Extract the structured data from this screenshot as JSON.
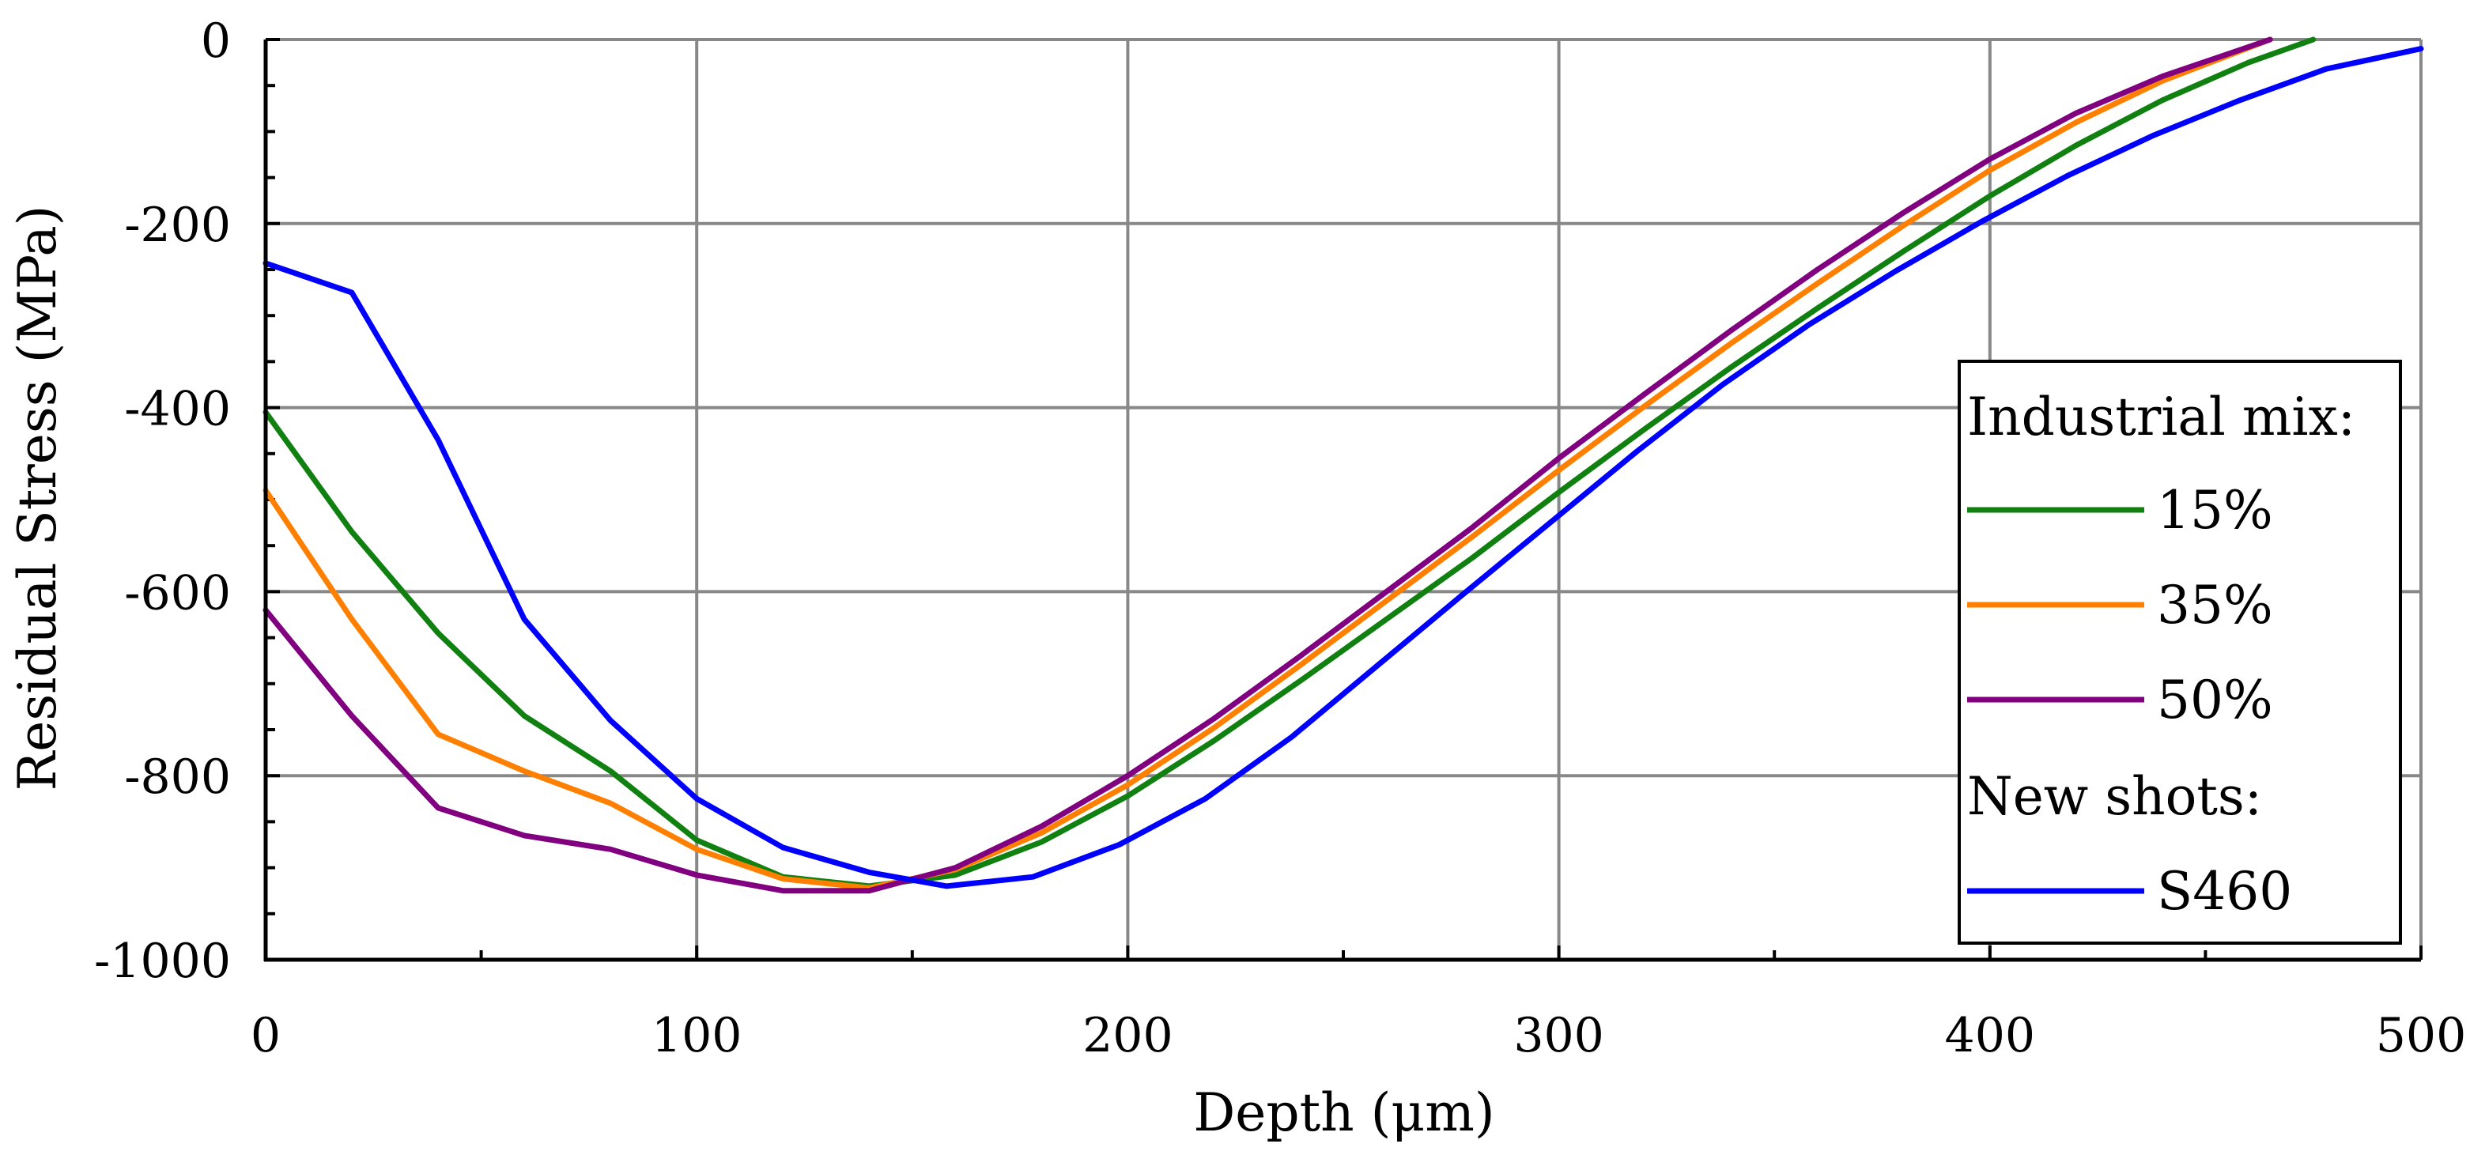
{
  "chart_data": {
    "type": "line",
    "title": "",
    "xlabel": "Depth (μm)",
    "ylabel": "Residual Stress (MPa)",
    "xlim": [
      0,
      500
    ],
    "ylim": [
      -1000,
      0
    ],
    "xticks": [
      0,
      100,
      200,
      300,
      400,
      500
    ],
    "yticks": [
      0,
      -200,
      -400,
      -600,
      -800,
      -1000
    ],
    "xtick_labels": [
      "0",
      "100",
      "200",
      "300",
      "400",
      "500"
    ],
    "ytick_labels": [
      "0",
      "-200",
      "-400",
      "-600",
      "-800",
      "-1000"
    ],
    "grid": true,
    "legend": {
      "position": "right",
      "group1_title": "Industrial mix:",
      "group2_title": "New shots:"
    },
    "series": [
      {
        "name": "15%",
        "color": "#108010",
        "x": [
          0,
          20,
          40,
          60,
          80,
          100,
          120,
          140,
          160,
          180,
          200,
          220,
          240,
          260,
          280,
          300,
          320,
          340,
          360,
          380,
          400,
          420,
          440,
          460,
          475
        ],
        "y": [
          -405,
          -535,
          -645,
          -735,
          -795,
          -870,
          -910,
          -920,
          -908,
          -872,
          -822,
          -762,
          -697,
          -630,
          -563,
          -492,
          -423,
          -356,
          -292,
          -230,
          -170,
          -115,
          -66,
          -25,
          0
        ]
      },
      {
        "name": "35%",
        "color": "#ff8000",
        "x": [
          0,
          20,
          40,
          60,
          80,
          100,
          120,
          140,
          160,
          180,
          200,
          220,
          240,
          260,
          280,
          300,
          320,
          340,
          360,
          380,
          400,
          420,
          440,
          465
        ],
        "y": [
          -490,
          -630,
          -755,
          -795,
          -830,
          -880,
          -912,
          -922,
          -902,
          -862,
          -810,
          -748,
          -680,
          -610,
          -540,
          -468,
          -398,
          -330,
          -265,
          -202,
          -142,
          -90,
          -45,
          0
        ]
      },
      {
        "name": "50%",
        "color": "#800080",
        "x": [
          0,
          20,
          40,
          60,
          80,
          100,
          120,
          140,
          160,
          180,
          200,
          220,
          240,
          260,
          280,
          300,
          320,
          340,
          360,
          380,
          400,
          420,
          440,
          465
        ],
        "y": [
          -620,
          -735,
          -835,
          -865,
          -880,
          -908,
          -925,
          -925,
          -900,
          -855,
          -800,
          -738,
          -670,
          -600,
          -530,
          -455,
          -385,
          -316,
          -250,
          -188,
          -130,
          -80,
          -40,
          0
        ]
      },
      {
        "name": "S460",
        "color": "#0000ff",
        "x": [
          0,
          20,
          40,
          60,
          80,
          100,
          120,
          140,
          158,
          178,
          198,
          218,
          238,
          258,
          278,
          298,
          318,
          338,
          358,
          378,
          398,
          418,
          438,
          458,
          478,
          500
        ],
        "y": [
          -243,
          -275,
          -435,
          -630,
          -740,
          -825,
          -878,
          -905,
          -920,
          -910,
          -875,
          -825,
          -758,
          -680,
          -602,
          -525,
          -448,
          -375,
          -310,
          -252,
          -198,
          -148,
          -104,
          -66,
          -32,
          -10
        ]
      }
    ]
  }
}
